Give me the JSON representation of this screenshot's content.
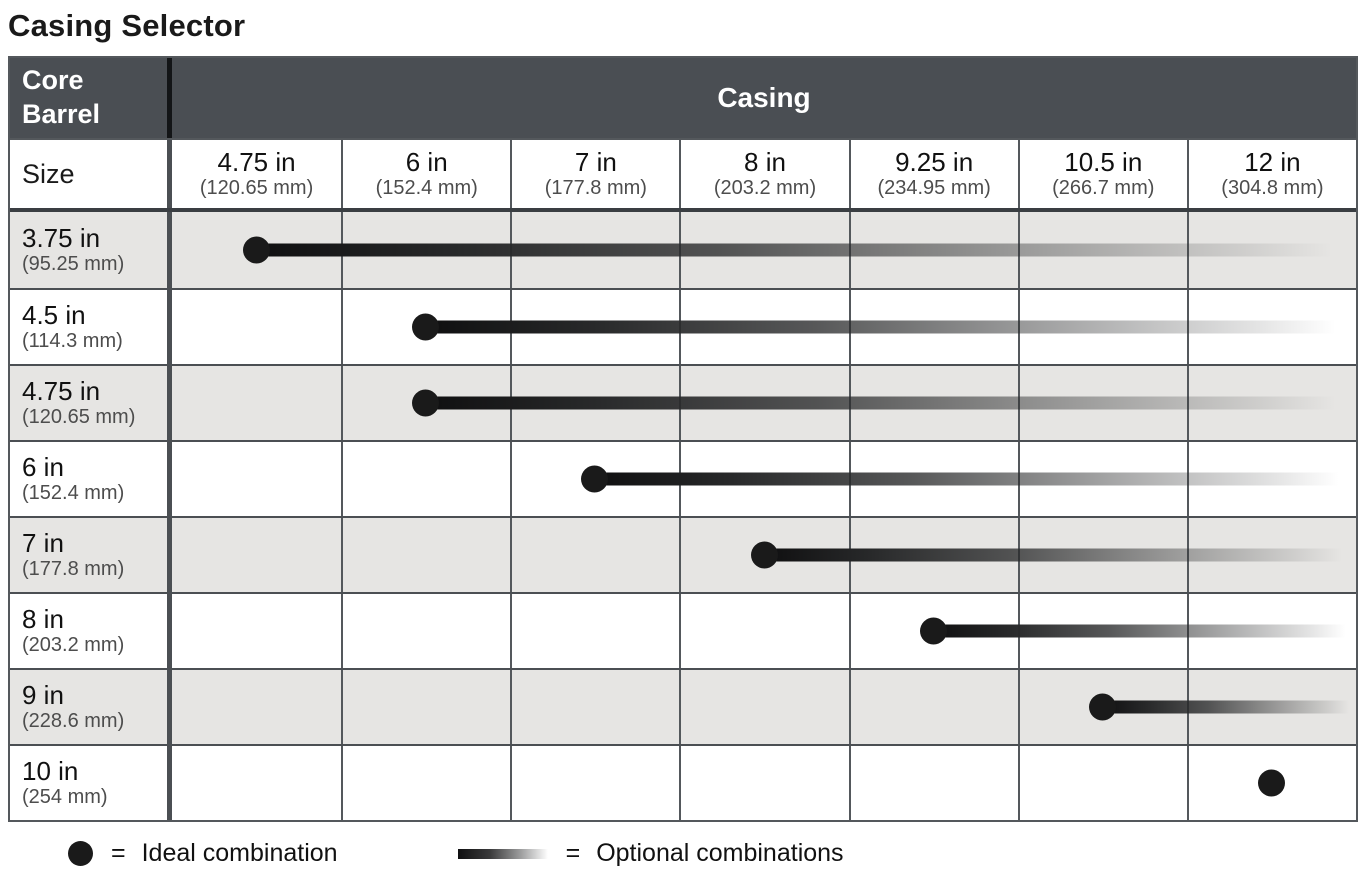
{
  "title": "Casing Selector",
  "table": {
    "corner_header": "Core Barrel",
    "casing_header": "Casing",
    "size_header": "Size",
    "columns": [
      {
        "size": "4.75 in",
        "mm": "(120.65 mm)"
      },
      {
        "size": "6 in",
        "mm": "(152.4 mm)"
      },
      {
        "size": "7 in",
        "mm": "(177.8 mm)"
      },
      {
        "size": "8 in",
        "mm": "(203.2 mm)"
      },
      {
        "size": "9.25 in",
        "mm": "(234.95 mm)"
      },
      {
        "size": "10.5 in",
        "mm": "(266.7 mm)"
      },
      {
        "size": "12 in",
        "mm": "(304.8 mm)"
      }
    ],
    "rows": [
      {
        "size": "3.75 in",
        "mm": "(95.25 mm)",
        "ideal_casing": "4.75 in",
        "ideal_col_index": 0,
        "optional_line": true
      },
      {
        "size": "4.5 in",
        "mm": "(114.3 mm)",
        "ideal_casing": "6 in",
        "ideal_col_index": 1,
        "optional_line": true
      },
      {
        "size": "4.75 in",
        "mm": "(120.65 mm)",
        "ideal_casing": "6 in",
        "ideal_col_index": 1,
        "optional_line": true
      },
      {
        "size": "6 in",
        "mm": "(152.4 mm)",
        "ideal_casing": "7 in",
        "ideal_col_index": 2,
        "optional_line": true
      },
      {
        "size": "7 in",
        "mm": "(177.8 mm)",
        "ideal_casing": "8 in",
        "ideal_col_index": 3,
        "optional_line": true
      },
      {
        "size": "8 in",
        "mm": "(203.2 mm)",
        "ideal_casing": "9.25 in",
        "ideal_col_index": 4,
        "optional_line": true
      },
      {
        "size": "9 in",
        "mm": "(228.6 mm)",
        "ideal_casing": "10.5 in",
        "ideal_col_index": 5,
        "optional_line": true
      },
      {
        "size": "10 in",
        "mm": "(254 mm)",
        "ideal_casing": "12 in",
        "ideal_col_index": 6,
        "optional_line": false
      }
    ]
  },
  "legend": {
    "equals": "=",
    "ideal_label": "Ideal combination",
    "optional_label": "Optional combinations"
  },
  "colors": {
    "header_bg": "#4a4e53",
    "row_alt_bg": "#e6e5e3",
    "marker": "#1a1a1a",
    "grid": "#54585c"
  }
}
